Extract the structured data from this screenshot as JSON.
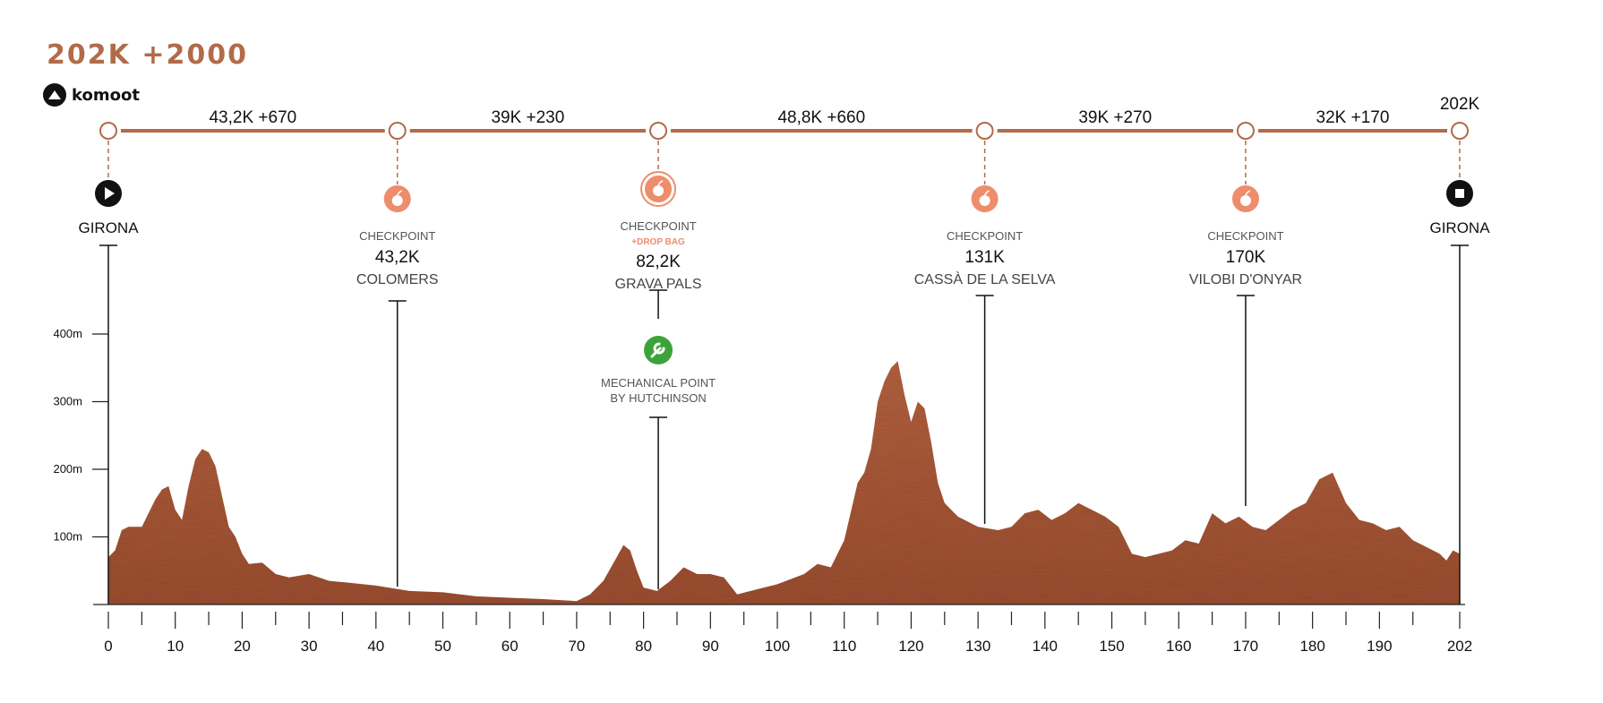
{
  "title": "202K +2000",
  "brand": "komoot",
  "colors": {
    "accent": "#b26b4a",
    "profile_fill": "#a8583a",
    "checkpoint": "#ee8d6b",
    "mechanical": "#3ca33a",
    "axis": "#222222"
  },
  "segments": [
    {
      "label": "43,2K +670"
    },
    {
      "label": "39K +230"
    },
    {
      "label": "48,8K +660"
    },
    {
      "label": "39K +270"
    },
    {
      "label": "32K +170"
    }
  ],
  "end_label": "202K",
  "waypoints": [
    {
      "km": 0,
      "icon": "start-play-icon",
      "type": "",
      "sub": "",
      "dist": "",
      "name": "GIRONA"
    },
    {
      "km": 43.2,
      "icon": "food-checkpoint-icon",
      "type": "CHECKPOINT",
      "sub": "",
      "dist": "43,2K",
      "name": "COLOMERS"
    },
    {
      "km": 82.2,
      "icon": "food-checkpoint-icon",
      "type": "CHECKPOINT",
      "sub": "+DROP BAG",
      "dist": "82,2K",
      "name": "GRAVA PALS"
    },
    {
      "km": 131,
      "icon": "food-checkpoint-icon",
      "type": "CHECKPOINT",
      "sub": "",
      "dist": "131K",
      "name": "CASSÀ DE LA SELVA"
    },
    {
      "km": 170,
      "icon": "food-checkpoint-icon",
      "type": "CHECKPOINT",
      "sub": "",
      "dist": "170K",
      "name": "VILOBI D'ONYAR"
    },
    {
      "km": 202,
      "icon": "finish-stop-icon",
      "type": "",
      "sub": "",
      "dist": "",
      "name": "GIRONA"
    }
  ],
  "mechanical": {
    "km": 82.2,
    "icon": "wrench-icon",
    "line1": "MECHANICAL POINT",
    "line2": "BY HUTCHINSON"
  },
  "chart_data": {
    "type": "area",
    "xlabel": "",
    "ylabel": "",
    "x_unit": "km",
    "y_unit": "m",
    "xlim": [
      0,
      202
    ],
    "ylim": [
      0,
      400
    ],
    "x_ticks": [
      0,
      10,
      20,
      30,
      40,
      50,
      60,
      70,
      80,
      90,
      100,
      110,
      120,
      130,
      140,
      150,
      160,
      170,
      180,
      190,
      202
    ],
    "x_minor_ticks": [
      5,
      15,
      25,
      35,
      45,
      55,
      65,
      75,
      85,
      95,
      105,
      115,
      125,
      135,
      145,
      155,
      165,
      175,
      185,
      195
    ],
    "y_ticks": [
      {
        "v": 100,
        "label": "100m"
      },
      {
        "v": 200,
        "label": "200m"
      },
      {
        "v": 300,
        "label": "300m"
      },
      {
        "v": 400,
        "label": "400m"
      }
    ],
    "series": [
      {
        "x": [
          0,
          1,
          2,
          3,
          5,
          7,
          8,
          9,
          10,
          11,
          12,
          13,
          14,
          15,
          16,
          17,
          18,
          19,
          20,
          21,
          23,
          25,
          27,
          30,
          33,
          36,
          40,
          45,
          50,
          55,
          60,
          65,
          70,
          72,
          74,
          76,
          77,
          78,
          79,
          80,
          82,
          84,
          86,
          88,
          90,
          92,
          94,
          96,
          100,
          104,
          106,
          108,
          110,
          112,
          113,
          114,
          115,
          116,
          117,
          118,
          119,
          120,
          121,
          122,
          123,
          124,
          125,
          127,
          130,
          133,
          135,
          137,
          139,
          141,
          143,
          145,
          147,
          149,
          151,
          153,
          155,
          157,
          159,
          161,
          163,
          165,
          167,
          169,
          171,
          173,
          175,
          177,
          179,
          181,
          183,
          185,
          187,
          189,
          191,
          193,
          195,
          197,
          199,
          200,
          201,
          202
        ],
        "y": [
          70,
          80,
          110,
          115,
          115,
          155,
          170,
          175,
          140,
          125,
          175,
          215,
          230,
          225,
          205,
          160,
          115,
          100,
          75,
          60,
          62,
          45,
          40,
          45,
          35,
          32,
          28,
          20,
          18,
          12,
          10,
          8,
          5,
          15,
          35,
          70,
          88,
          80,
          50,
          25,
          20,
          35,
          55,
          45,
          45,
          40,
          15,
          20,
          30,
          45,
          60,
          55,
          95,
          180,
          195,
          230,
          300,
          330,
          350,
          360,
          310,
          270,
          300,
          290,
          240,
          180,
          150,
          130,
          115,
          110,
          115,
          135,
          140,
          125,
          135,
          150,
          140,
          130,
          115,
          75,
          70,
          75,
          80,
          95,
          90,
          135,
          120,
          130,
          115,
          110,
          125,
          140,
          150,
          185,
          195,
          150,
          125,
          120,
          110,
          115,
          95,
          85,
          75,
          65,
          80,
          75
        ]
      }
    ]
  }
}
